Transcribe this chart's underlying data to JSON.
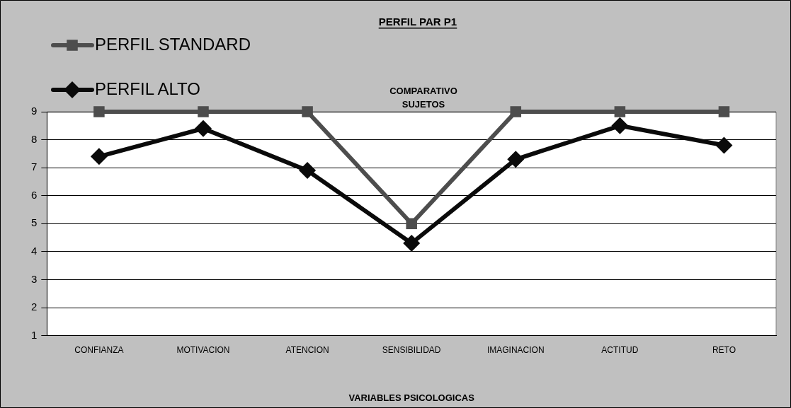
{
  "chart_data": {
    "type": "line",
    "title": "PERFIL PAR P1",
    "xlabel": "VARIABLES PSICOLOGICAS",
    "annotations": [
      "COMPARATIVO SUJETOS"
    ],
    "categories": [
      "CONFIANZA",
      "MOTIVACION",
      "ATENCION",
      "SENSIBILIDAD",
      "IMAGINACION",
      "ACTITUD",
      "RETO"
    ],
    "series": [
      {
        "name": "PERFIL STANDARD",
        "color": "#4d4d4d",
        "marker": "square",
        "values": [
          9,
          9,
          9,
          5,
          9,
          9,
          9
        ]
      },
      {
        "name": "PERFIL ALTO",
        "color": "#0a0a0a",
        "marker": "diamond",
        "values": [
          7.4,
          8.4,
          6.9,
          4.3,
          7.3,
          8.5,
          7.8
        ]
      }
    ],
    "ylim": [
      1,
      9
    ],
    "yticks": [
      1,
      2,
      3,
      4,
      5,
      6,
      7,
      8,
      9
    ],
    "grid": "y",
    "legend": "top left",
    "line_style": "solid"
  }
}
